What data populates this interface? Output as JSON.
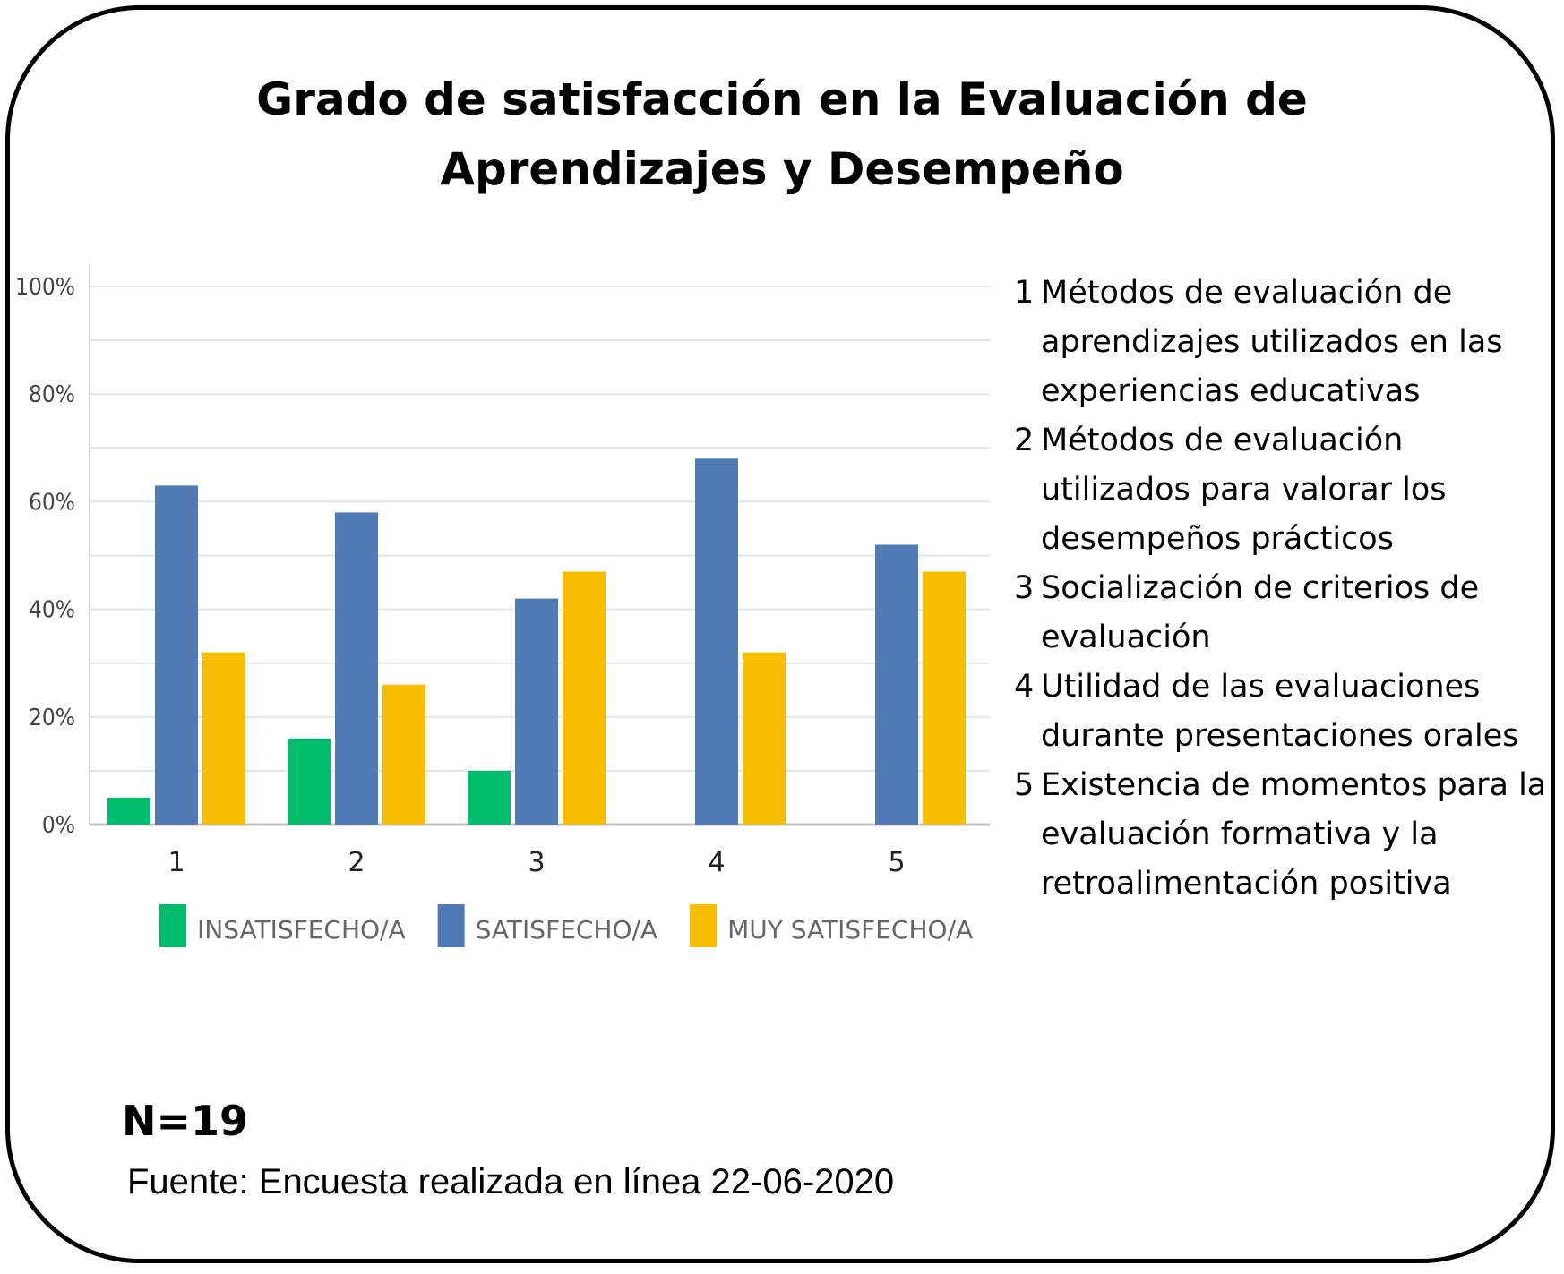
{
  "title_line1": "Grado de satisfacción en la Evaluación de",
  "title_line2": "Aprendizajes y Desempeño",
  "descriptions": [
    {
      "num": "1",
      "text": "Métodos de evaluación de aprendizajes utilizados en las experiencias educativas"
    },
    {
      "num": "2",
      "text": "Métodos de evaluación utilizados para valorar los desempeños prácticos"
    },
    {
      "num": "3",
      "text": "Socialización de criterios de evaluación"
    },
    {
      "num": "4",
      "text": "Utilidad de las evaluaciones durante presentaciones orales"
    },
    {
      "num": "5",
      "text": "Existencia de momentos para la evaluación formativa y la retroalimentación positiva"
    }
  ],
  "n_label": "N=19",
  "source": "Fuente: Encuesta realizada en línea 22-06-2020",
  "chart_data": {
    "type": "bar",
    "categories": [
      "1",
      "2",
      "3",
      "4",
      "5"
    ],
    "series": [
      {
        "name": "INSATISFECHO/A",
        "color": "#00BC6C",
        "values": [
          5,
          16,
          10,
          0,
          0
        ]
      },
      {
        "name": "SATISFECHO/A",
        "color": "#4F7AB5",
        "values": [
          63,
          58,
          42,
          68,
          52
        ]
      },
      {
        "name": "MUY SATISFECHO/A",
        "color": "#F7BE00",
        "values": [
          32,
          26,
          47,
          32,
          47
        ]
      }
    ],
    "yticks": [
      "0%",
      "20%",
      "40%",
      "60%",
      "80%",
      "100%"
    ],
    "ylim": [
      0,
      100
    ],
    "grid": true,
    "legend": "bottom"
  }
}
